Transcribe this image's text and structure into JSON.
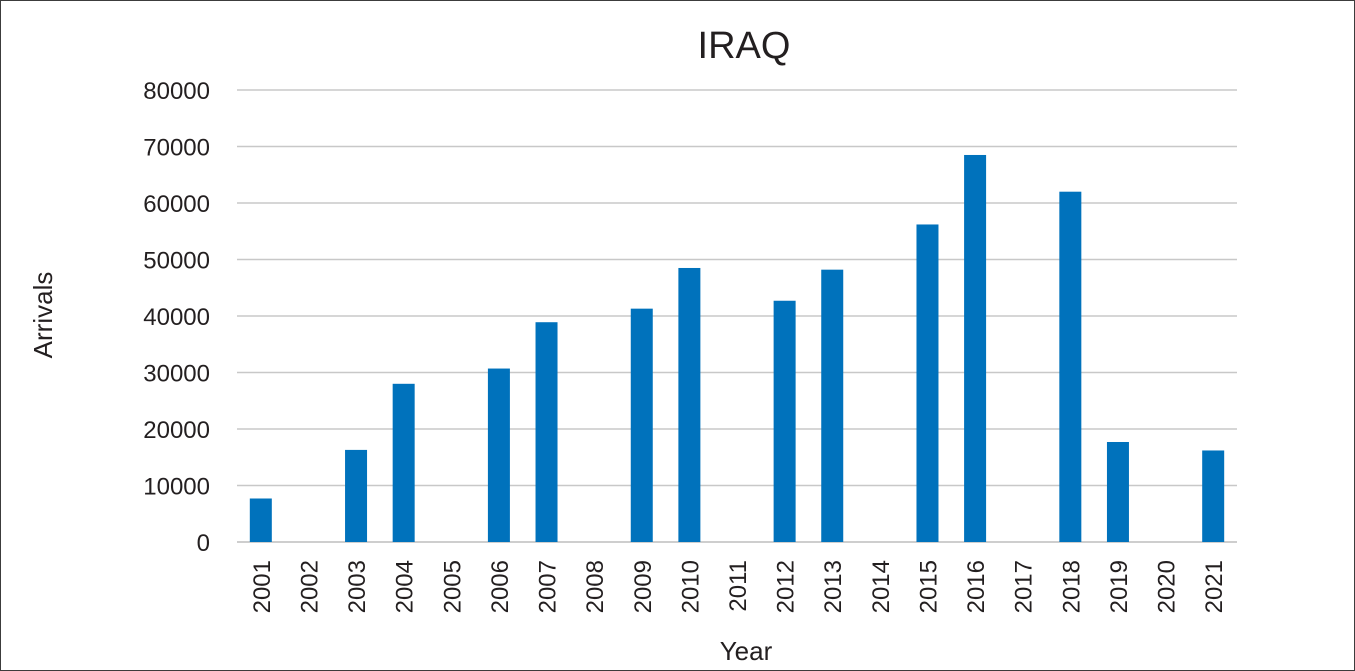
{
  "chart_data": {
    "type": "bar",
    "title": "IRAQ",
    "xlabel": "Year",
    "ylabel": "Arrivals",
    "ylim": [
      0,
      80000
    ],
    "yticks": [
      0,
      10000,
      20000,
      30000,
      40000,
      50000,
      60000,
      70000,
      80000
    ],
    "grid": true,
    "legend": "none",
    "bar_color": "#0072bc",
    "categories": [
      "2001",
      "2002",
      "2003",
      "2004",
      "2005",
      "2006",
      "2007",
      "2008",
      "2009",
      "2010",
      "2011",
      "2012",
      "2013",
      "2014",
      "2015",
      "2016",
      "2017",
      "2018",
      "2019",
      "2020",
      "2021"
    ],
    "values": [
      7700,
      null,
      16300,
      28000,
      null,
      30700,
      38900,
      null,
      41300,
      48500,
      null,
      42700,
      48200,
      null,
      56200,
      68500,
      null,
      62000,
      17700,
      null,
      16200
    ]
  }
}
